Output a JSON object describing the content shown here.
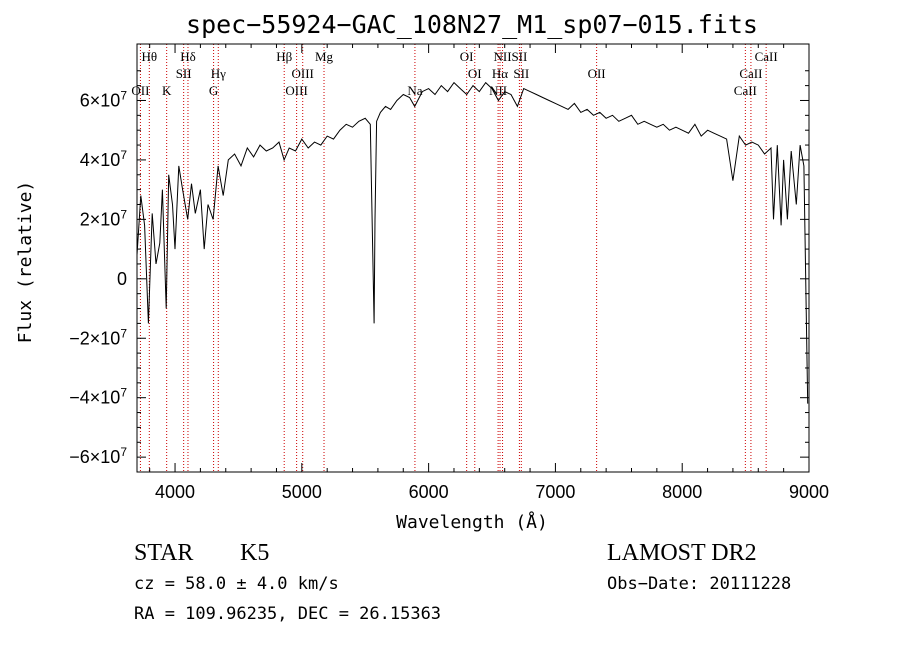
{
  "chart_data": {
    "type": "line",
    "title": "spec−55924−GAC_108N27_M1_sp07−015.fits",
    "xlabel": "Wavelength (Å)",
    "ylabel": "Flux (relative)",
    "xlim": [
      3700,
      9000
    ],
    "ylim": [
      -65000000,
      79000000
    ],
    "xticks": [
      {
        "value": 4000,
        "label": "4000"
      },
      {
        "value": 5000,
        "label": "5000"
      },
      {
        "value": 6000,
        "label": "6000"
      },
      {
        "value": 7000,
        "label": "7000"
      },
      {
        "value": 8000,
        "label": "8000"
      },
      {
        "value": 9000,
        "label": "9000"
      }
    ],
    "yticks": [
      {
        "value": 60000000,
        "base": "6×10",
        "exp": "7"
      },
      {
        "value": 40000000,
        "base": "4×10",
        "exp": "7"
      },
      {
        "value": 20000000,
        "base": "2×10",
        "exp": "7"
      },
      {
        "value": 0,
        "base": "0",
        "exp": ""
      },
      {
        "value": -20000000,
        "base": "−2×10",
        "exp": "7"
      },
      {
        "value": -40000000,
        "base": "−4×10",
        "exp": "7"
      },
      {
        "value": -60000000,
        "base": "−6×10",
        "exp": "7"
      }
    ],
    "grid": false,
    "legend": "none",
    "series": [
      {
        "color": "#000000",
        "x": [
          3700,
          3730,
          3760,
          3790,
          3820,
          3850,
          3880,
          3900,
          3930,
          3950,
          3980,
          4000,
          4030,
          4060,
          4100,
          4130,
          4160,
          4200,
          4230,
          4260,
          4300,
          4340,
          4380,
          4420,
          4470,
          4520,
          4570,
          4620,
          4670,
          4720,
          4770,
          4820,
          4860,
          4900,
          4950,
          5000,
          5050,
          5100,
          5150,
          5200,
          5250,
          5300,
          5350,
          5400,
          5450,
          5500,
          5540,
          5570,
          5577,
          5590,
          5620,
          5660,
          5700,
          5750,
          5800,
          5850,
          5890,
          5950,
          6000,
          6050,
          6100,
          6150,
          6200,
          6250,
          6300,
          6350,
          6400,
          6450,
          6500,
          6550,
          6600,
          6650,
          6700,
          6750,
          6800,
          6850,
          6900,
          6950,
          7000,
          7050,
          7100,
          7150,
          7200,
          7250,
          7300,
          7350,
          7400,
          7450,
          7500,
          7550,
          7600,
          7650,
          7700,
          7750,
          7800,
          7850,
          7900,
          7950,
          8000,
          8050,
          8100,
          8150,
          8200,
          8250,
          8300,
          8350,
          8400,
          8450,
          8500,
          8550,
          8600,
          8650,
          8700,
          8720,
          8750,
          8780,
          8800,
          8830,
          8860,
          8900,
          8930,
          8960,
          8990
        ],
        "y": [
          8000000,
          28000000,
          18000000,
          -15000000,
          22000000,
          5000000,
          12000000,
          30000000,
          -10000000,
          35000000,
          25000000,
          10000000,
          38000000,
          30000000,
          20000000,
          32000000,
          22000000,
          30000000,
          10000000,
          25000000,
          20000000,
          38000000,
          28000000,
          40000000,
          42000000,
          38000000,
          44000000,
          41000000,
          45000000,
          43000000,
          44000000,
          46000000,
          40000000,
          44000000,
          43000000,
          47000000,
          44000000,
          46000000,
          45000000,
          48000000,
          47000000,
          50000000,
          52000000,
          51000000,
          53000000,
          54000000,
          52000000,
          -15000000,
          20000000,
          53000000,
          56000000,
          58000000,
          57000000,
          60000000,
          62000000,
          61000000,
          58000000,
          63000000,
          64000000,
          62000000,
          65000000,
          63000000,
          66000000,
          64000000,
          62000000,
          65000000,
          63000000,
          66000000,
          64000000,
          60000000,
          63000000,
          62000000,
          58000000,
          64000000,
          63000000,
          62000000,
          61000000,
          60000000,
          59000000,
          58000000,
          57000000,
          59000000,
          56000000,
          57000000,
          55000000,
          56000000,
          54000000,
          55000000,
          53000000,
          54000000,
          55000000,
          52000000,
          53000000,
          52000000,
          51000000,
          52000000,
          50000000,
          51000000,
          50000000,
          49000000,
          52000000,
          48000000,
          50000000,
          49000000,
          48000000,
          47000000,
          33000000,
          48000000,
          45000000,
          46000000,
          45000000,
          42000000,
          44000000,
          20000000,
          45000000,
          18000000,
          40000000,
          20000000,
          43000000,
          25000000,
          45000000,
          38000000,
          -42000000
        ]
      }
    ],
    "line_color": "#cc0000",
    "spectral_lines": [
      {
        "wavelength": 3727,
        "label": "OII",
        "row": 3
      },
      {
        "wavelength": 3797,
        "label": "Hθ",
        "row": 1
      },
      {
        "wavelength": 3934,
        "label": "K",
        "row": 3
      },
      {
        "wavelength": 4068,
        "label": "SII",
        "row": 2
      },
      {
        "wavelength": 4102,
        "label": "Hδ",
        "row": 1
      },
      {
        "wavelength": 4304,
        "label": "G",
        "row": 3
      },
      {
        "wavelength": 4341,
        "label": "Hγ",
        "row": 2
      },
      {
        "wavelength": 4861,
        "label": "Hβ",
        "row": 1
      },
      {
        "wavelength": 4959,
        "label": "OIII",
        "row": 3
      },
      {
        "wavelength": 5007,
        "label": "OIII",
        "row": 2
      },
      {
        "wavelength": 5175,
        "label": "Mg",
        "row": 1
      },
      {
        "wavelength": 5892,
        "label": "Na",
        "row": 3
      },
      {
        "wavelength": 6300,
        "label": "OI",
        "row": 1
      },
      {
        "wavelength": 6364,
        "label": "OI",
        "row": 2
      },
      {
        "wavelength": 6548,
        "label": "NII",
        "row": 3
      },
      {
        "wavelength": 6563,
        "label": "Hα",
        "row": 2
      },
      {
        "wavelength": 6583,
        "label": "NII",
        "row": 1
      },
      {
        "wavelength": 6716,
        "label": "SII",
        "row": 1
      },
      {
        "wavelength": 6731,
        "label": "SII",
        "row": 2
      },
      {
        "wavelength": 7325,
        "label": "OII",
        "row": 2
      },
      {
        "wavelength": 8498,
        "label": "CaII",
        "row": 3
      },
      {
        "wavelength": 8542,
        "label": "CaII",
        "row": 2
      },
      {
        "wavelength": 8662,
        "label": "CaII",
        "row": 1
      }
    ]
  },
  "info": {
    "class": "STAR",
    "subclass": "K5",
    "survey": "LAMOST DR2",
    "cz": "cz = 58.0 ± 4.0 km/s",
    "obs_date": "Obs−Date: 20111228",
    "coords": "RA = 109.96235, DEC =  26.15363"
  }
}
